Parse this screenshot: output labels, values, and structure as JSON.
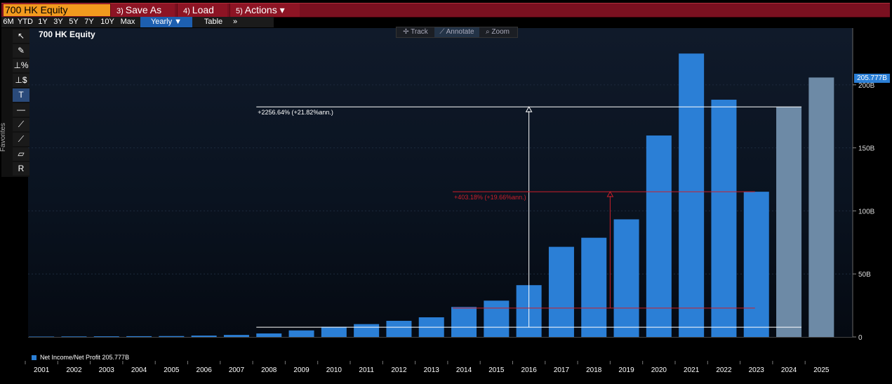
{
  "toolbar": {
    "ticker": "700 HK Equity",
    "save_as": {
      "num": "3)",
      "label": "Save As"
    },
    "load": {
      "num": "4)",
      "label": "Load"
    },
    "actions": {
      "num": "5)",
      "label": "Actions ▾"
    }
  },
  "ranges": [
    "6M",
    "YTD",
    "1Y",
    "3Y",
    "5Y",
    "7Y",
    "10Y",
    "Max",
    "Yearly ▼",
    "Table",
    "»"
  ],
  "active_range": "Yearly ▼",
  "modes": [
    {
      "label": "✢ Track",
      "active": false
    },
    {
      "label": "⟋ Annotate",
      "active": true
    },
    {
      "label": "⌕ Zoom",
      "active": false
    }
  ],
  "side_tools": [
    "↖",
    "✎",
    "⊥%",
    "⊥$",
    "T",
    "—",
    "⟋",
    "⟋",
    "▱",
    "R"
  ],
  "favorites_label": "Favorites",
  "chart_data": {
    "type": "bar",
    "title": "700 HK Equity",
    "categories": [
      "2001",
      "2002",
      "2003",
      "2004",
      "2005",
      "2006",
      "2007",
      "2008",
      "2009",
      "2010",
      "2011",
      "2012",
      "2013",
      "2014",
      "2015",
      "2016",
      "2017",
      "2018",
      "2019",
      "2020",
      "2021",
      "2022",
      "2023",
      "2024",
      "2025"
    ],
    "series": [
      {
        "name": "Net Income/Net Profit",
        "values": [
          0.3,
          0.4,
          0.5,
          0.6,
          0.7,
          1.1,
          1.6,
          2.8,
          5.2,
          8.1,
          10.2,
          12.8,
          15.6,
          23.8,
          28.8,
          41.1,
          71.5,
          78.7,
          93.3,
          159.8,
          224.8,
          188.2,
          115.2,
          182.5,
          205.8
        ]
      }
    ],
    "forecast_from_index": 23,
    "bar_color": "#2b7fd6",
    "forecast_color": "#6d8aa6",
    "ylim": [
      0,
      245
    ],
    "yticks": [
      0,
      50,
      100,
      150,
      200
    ],
    "ytick_labels": [
      "0",
      "50B",
      "100B",
      "150B",
      "200B"
    ],
    "y_axis_side": "right",
    "legend_text": "Net Income/Net Profit  205.777B",
    "last_value_label": "205.777B",
    "annotations": [
      {
        "label": "+2256.64% (+21.82%ann.)",
        "color": "#ffffff",
        "from_value": 7.75,
        "to_value": 182.5,
        "start_index": 7,
        "end_index": 23,
        "arrow_index": 15
      },
      {
        "label": "+403.18% (+19.66%ann.)",
        "color": "#cc1f2a",
        "from_value": 22.9,
        "to_value": 115.2,
        "start_index": 13,
        "end_index": 22,
        "arrow_index": 17.5
      }
    ]
  }
}
